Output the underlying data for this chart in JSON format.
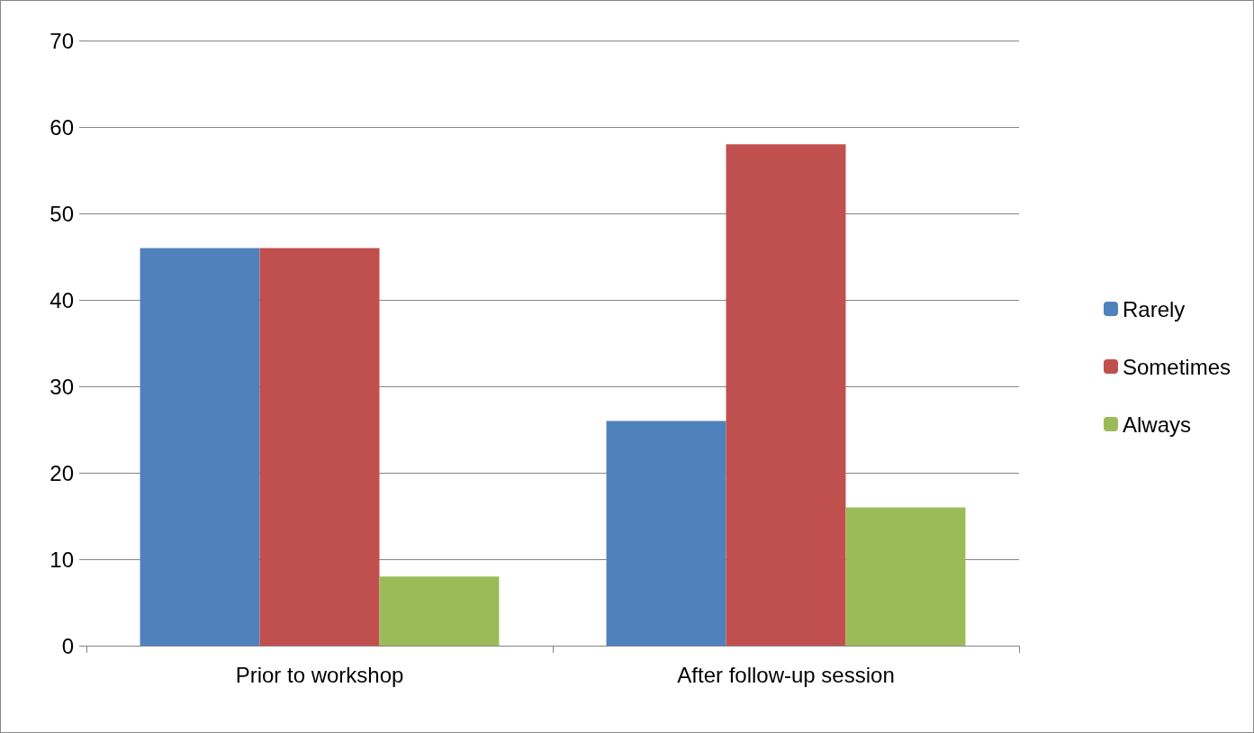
{
  "chart_data": {
    "type": "bar",
    "categories": [
      "Prior to workshop",
      "After follow-up session"
    ],
    "series": [
      {
        "name": "Rarely",
        "color": "#4f81bd",
        "values": [
          46,
          26
        ]
      },
      {
        "name": "Sometimes",
        "color": "#c0504d",
        "values": [
          46,
          58
        ]
      },
      {
        "name": "Always",
        "color": "#9bbb59",
        "values": [
          8,
          16
        ]
      }
    ],
    "ylim": [
      0,
      70
    ],
    "yticks": [
      0,
      10,
      20,
      30,
      40,
      50,
      60,
      70
    ],
    "grid": "y",
    "legend": "right"
  }
}
